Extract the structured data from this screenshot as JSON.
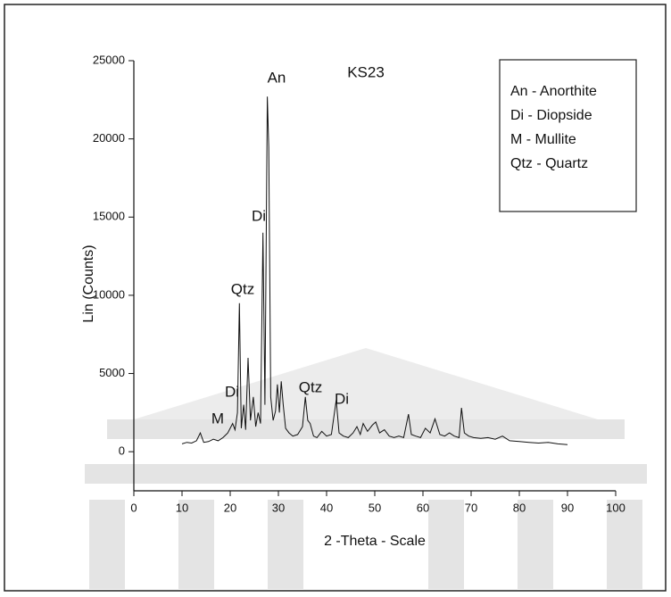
{
  "chart_data": {
    "type": "line",
    "title": "KS23",
    "xlabel": "2 -Theta  - Scale",
    "ylabel": "Lin (Counts)",
    "xlim": [
      0,
      100
    ],
    "xticks": [
      0,
      10,
      20,
      30,
      40,
      50,
      60,
      70,
      80,
      90,
      100
    ],
    "ylim": [
      -2500,
      25000
    ],
    "yticks": [
      0,
      5000,
      10000,
      15000,
      20000,
      25000
    ],
    "color": "#111111",
    "annotations": [
      "An",
      "Di",
      "Qtz",
      "Di",
      "Qtz",
      "Di",
      "M"
    ],
    "legend_entries": [
      "An - Anorthite",
      "Di - Diopside",
      "M - Mullite",
      "Qtz - Quartz"
    ],
    "x": [
      10,
      11,
      12,
      13,
      13.8,
      14.5,
      15.5,
      16.5,
      17.5,
      18.5,
      19.5,
      20.5,
      21,
      21.5,
      21.9,
      22.3,
      22.8,
      23.2,
      23.7,
      24.2,
      24.8,
      25.3,
      25.8,
      26.3,
      26.8,
      27.2,
      27.7,
      28.0,
      28.4,
      28.9,
      29.4,
      29.8,
      30.2,
      30.6,
      31.0,
      31.5,
      32.2,
      33,
      34,
      35,
      35.6,
      36.1,
      36.6,
      37.3,
      38,
      39,
      40,
      41,
      42,
      42.6,
      43.5,
      44.5,
      45.5,
      46.3,
      47,
      47.6,
      48.5,
      49.5,
      50.2,
      51,
      52,
      53,
      54,
      55,
      56,
      57,
      57.6,
      58.5,
      59.5,
      60.5,
      61.5,
      62.5,
      63.5,
      64.5,
      65.5,
      66.5,
      67.5,
      68,
      68.6,
      69.5,
      70.5,
      72,
      73.5,
      75,
      76.5,
      78,
      80,
      82,
      84,
      86,
      88,
      90
    ],
    "values": [
      500,
      600,
      550,
      700,
      1200,
      600,
      650,
      800,
      700,
      900,
      1200,
      1800,
      1400,
      2500,
      9500,
      1500,
      3000,
      1400,
      6000,
      2000,
      3500,
      1600,
      2500,
      1800,
      14000,
      3000,
      22700,
      19500,
      3500,
      2000,
      2600,
      4300,
      2500,
      4500,
      3000,
      1500,
      1200,
      1000,
      1100,
      1600,
      3500,
      2000,
      1800,
      1000,
      900,
      1300,
      1000,
      1100,
      3300,
      1200,
      1000,
      900,
      1200,
      1600,
      1100,
      1800,
      1300,
      1700,
      1900,
      1200,
      1400,
      1000,
      900,
      1000,
      900,
      2400,
      1100,
      1000,
      900,
      1500,
      1200,
      2100,
      1100,
      1000,
      1200,
      1000,
      900,
      2800,
      1200,
      1000,
      900,
      850,
      900,
      800,
      1000,
      700,
      650,
      600,
      550,
      600,
      500,
      450
    ]
  }
}
